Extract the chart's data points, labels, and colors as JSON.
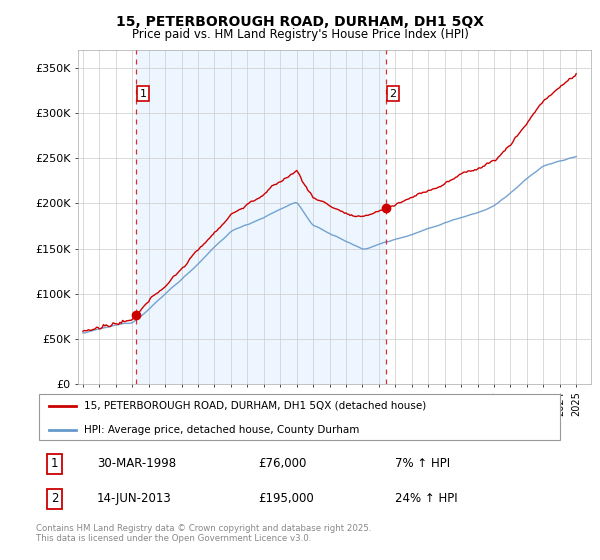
{
  "title": "15, PETERBOROUGH ROAD, DURHAM, DH1 5QX",
  "subtitle": "Price paid vs. HM Land Registry's House Price Index (HPI)",
  "legend_line1": "15, PETERBOROUGH ROAD, DURHAM, DH1 5QX (detached house)",
  "legend_line2": "HPI: Average price, detached house, County Durham",
  "sale1_label": "1",
  "sale1_date": "30-MAR-1998",
  "sale1_price": "£76,000",
  "sale1_hpi": "7% ↑ HPI",
  "sale2_label": "2",
  "sale2_date": "14-JUN-2013",
  "sale2_price": "£195,000",
  "sale2_hpi": "24% ↑ HPI",
  "footer": "Contains HM Land Registry data © Crown copyright and database right 2025.\nThis data is licensed under the Open Government Licence v3.0.",
  "ylim": [
    0,
    370000
  ],
  "yticks": [
    0,
    50000,
    100000,
    150000,
    200000,
    250000,
    300000,
    350000
  ],
  "ytick_labels": [
    "£0",
    "£50K",
    "£100K",
    "£150K",
    "£200K",
    "£250K",
    "£300K",
    "£350K"
  ],
  "red_color": "#cc0000",
  "blue_color": "#6699cc",
  "background": "#ffffff",
  "grid_color": "#cccccc",
  "bg_fill_color": "#ddeeff",
  "sale1_x": 1998.25,
  "sale1_y": 76000,
  "sale2_x": 2013.45,
  "sale2_y": 195000,
  "xlim_left": 1994.7,
  "xlim_right": 2025.9
}
